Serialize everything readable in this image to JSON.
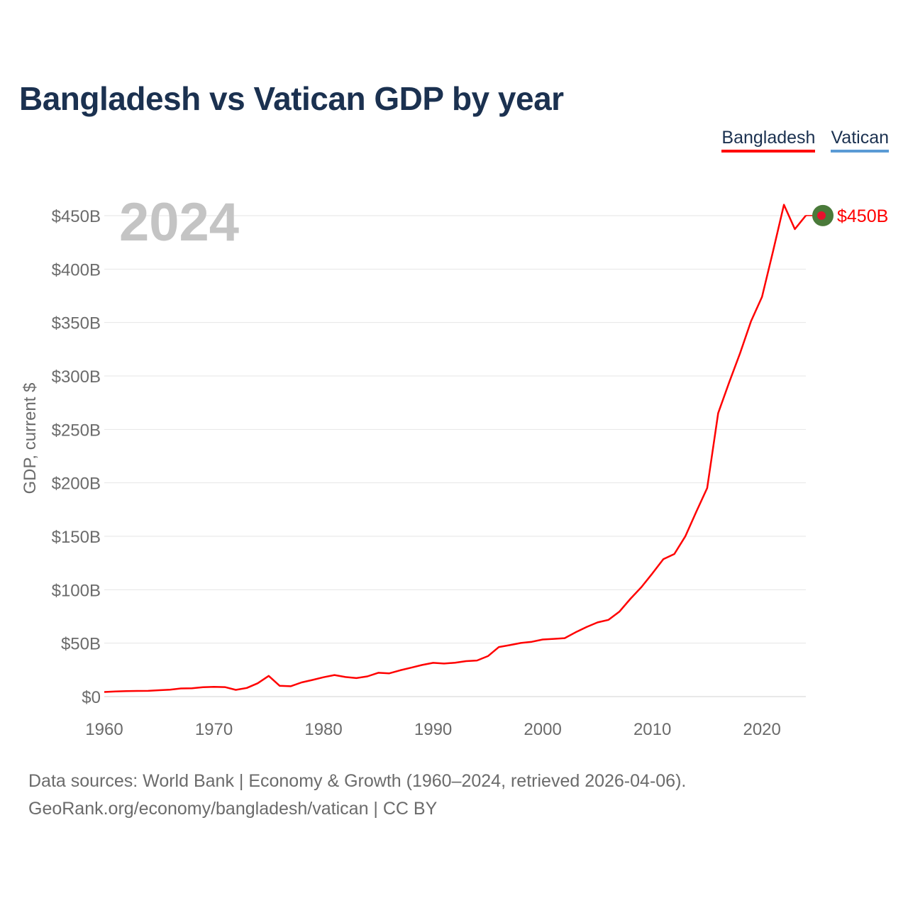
{
  "header": {
    "title": "Bangladesh vs Vatican GDP by year"
  },
  "legend": [
    {
      "label": "Bangladesh",
      "color": "#ff0000"
    },
    {
      "label": "Vatican",
      "color": "#5b9bd5"
    }
  ],
  "footer": {
    "source": "Data sources: World Bank | Economy & Growth (1960–2024, retrieved 2026-04-06).",
    "credit": "GeoRank.org/economy/bangladesh/vatican | CC BY"
  },
  "chart_data": {
    "type": "line",
    "year_label": "2024",
    "ylabel": "GDP, current $",
    "xlim": [
      1960,
      2024
    ],
    "ylim": [
      0,
      450
    ],
    "x_ticks": [
      1960,
      1970,
      1980,
      1990,
      2000,
      2010,
      2020
    ],
    "y_ticks": [
      0,
      50,
      100,
      150,
      200,
      250,
      300,
      350,
      400,
      450
    ],
    "y_tick_labels": [
      "$0",
      "$50B",
      "$100B",
      "$150B",
      "$200B",
      "$250B",
      "$300B",
      "$350B",
      "$400B",
      "$450B"
    ],
    "grid": true,
    "end_label": "$450B",
    "series": [
      {
        "name": "Bangladesh",
        "color": "#ff0000",
        "marker_color": "#4a7a3a",
        "x": [
          1960,
          1961,
          1962,
          1963,
          1964,
          1965,
          1966,
          1967,
          1968,
          1969,
          1970,
          1971,
          1972,
          1973,
          1974,
          1975,
          1976,
          1977,
          1978,
          1979,
          1980,
          1981,
          1982,
          1983,
          1984,
          1985,
          1986,
          1987,
          1988,
          1989,
          1990,
          1991,
          1992,
          1993,
          1994,
          1995,
          1996,
          1997,
          1998,
          1999,
          2000,
          2001,
          2002,
          2003,
          2004,
          2005,
          2006,
          2007,
          2008,
          2009,
          2010,
          2011,
          2012,
          2013,
          2014,
          2015,
          2016,
          2017,
          2018,
          2019,
          2020,
          2021,
          2022,
          2023,
          2024
        ],
        "values": [
          4.3,
          4.8,
          5.1,
          5.3,
          5.4,
          6.0,
          6.5,
          7.6,
          7.8,
          8.8,
          9.1,
          8.9,
          6.3,
          8.1,
          12.5,
          19.4,
          10.1,
          9.7,
          13.3,
          15.6,
          18.1,
          20.2,
          18.3,
          17.3,
          18.9,
          22.3,
          21.8,
          24.6,
          27.1,
          29.6,
          31.6,
          30.9,
          31.7,
          33.2,
          33.8,
          37.9,
          46.4,
          48.2,
          50.2,
          51.3,
          53.4,
          54.0,
          54.7,
          60.2,
          65.1,
          69.4,
          71.8,
          79.6,
          91.6,
          102.5,
          115.3,
          128.6,
          133.4,
          149.9,
          172.9,
          195.1,
          265.2,
          293.8,
          321.4,
          351.2,
          374.0,
          416.3,
          460.2,
          437.4,
          450.1
        ]
      }
    ]
  }
}
